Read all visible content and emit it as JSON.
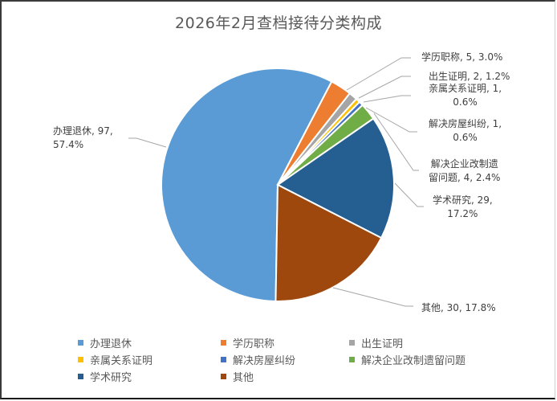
{
  "chart_data": {
    "type": "pie",
    "title": "2026年2月查档接待分类构成",
    "categories": [
      "办理退休",
      "学历职称",
      "出生证明",
      "亲属关系证明",
      "解决房屋纠纷",
      "解决企业改制遗留问题",
      "学术研究",
      "其他"
    ],
    "values": [
      97,
      5,
      2,
      1,
      1,
      4,
      29,
      30
    ],
    "percentages": [
      "57.4%",
      "3.0%",
      "1.2%",
      "0.6%",
      "0.6%",
      "2.4%",
      "17.2%",
      "17.8%"
    ],
    "colors": [
      "#5B9BD5",
      "#ED7D31",
      "#A5A5A5",
      "#FFC000",
      "#4472C4",
      "#70AD47",
      "#255E91",
      "#9E480E"
    ],
    "first_slice_angle_deg": 181,
    "legend_position": "bottom",
    "data_labels": [
      "办理退休, 97, 57.4%",
      "学历职称, 5, 3.0%",
      "出生证明, 2, 1.2%",
      "亲属关系证明, 1, 0.6%",
      "解决房屋纠纷, 1, 0.6%",
      "解决企业改制遗留问题, 4, 2.4%",
      "学术研究, 29, 17.2%",
      "其他, 30, 17.8%"
    ]
  },
  "labels": {
    "l0a": "办理退休, 97,",
    "l0b": "57.4%",
    "l1": "学历职称, 5, 3.0%",
    "l2": "出生证明, 2, 1.2%",
    "l3a": "亲属关系证明, 1,",
    "l3b": "0.6%",
    "l4a": "解决房屋纠纷, 1,",
    "l4b": "0.6%",
    "l5a": "解决企业改制遗",
    "l5b": "留问题, 4, 2.4%",
    "l6a": "学术研究, 29,",
    "l6b": "17.2%",
    "l7": "其他, 30, 17.8%"
  }
}
